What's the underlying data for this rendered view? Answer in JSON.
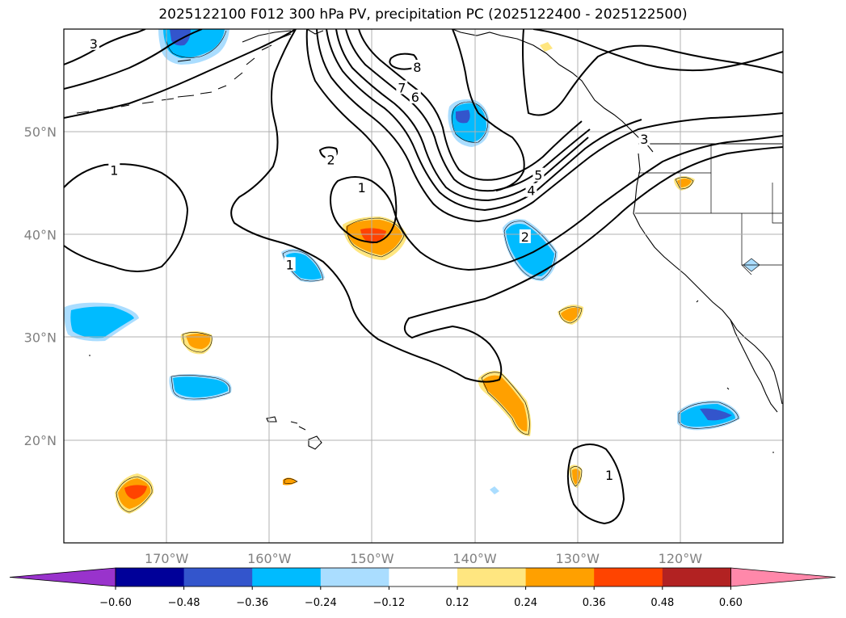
{
  "title": "2025122100 F012 300 hPa PV, precipitation PC (2025122400 - 2025122500)",
  "map": {
    "lon_range": [
      -180,
      -110
    ],
    "lat_range": [
      10,
      60
    ],
    "grid": true,
    "lon_ticks": [
      {
        "lon": -170,
        "label": "170°W"
      },
      {
        "lon": -160,
        "label": "160°W"
      },
      {
        "lon": -150,
        "label": "150°W"
      },
      {
        "lon": -140,
        "label": "140°W"
      },
      {
        "lon": -130,
        "label": "130°W"
      },
      {
        "lon": -120,
        "label": "120°W"
      }
    ],
    "lat_ticks": [
      {
        "lat": 20,
        "label": "20°N"
      },
      {
        "lat": 30,
        "label": "30°N"
      },
      {
        "lat": 40,
        "label": "40°N"
      },
      {
        "lat": 50,
        "label": "50°N"
      }
    ]
  },
  "contour_labels": [
    {
      "text": "3",
      "lon": -177.1,
      "lat": 58.6
    },
    {
      "text": "1",
      "lon": -175.1,
      "lat": 46.3
    },
    {
      "text": "2",
      "lon": -154.0,
      "lat": 47.3
    },
    {
      "text": "1",
      "lon": -151.0,
      "lat": 44.6
    },
    {
      "text": "8",
      "lon": -145.6,
      "lat": 56.3
    },
    {
      "text": "7",
      "lon": -147.1,
      "lat": 54.3
    },
    {
      "text": "6",
      "lon": -145.8,
      "lat": 53.4
    },
    {
      "text": "5",
      "lon": -133.8,
      "lat": 45.8
    },
    {
      "text": "4",
      "lon": -134.5,
      "lat": 44.3
    },
    {
      "text": "2",
      "lon": -135.1,
      "lat": 39.8
    },
    {
      "text": "1",
      "lon": -158.0,
      "lat": 37.1
    },
    {
      "text": "1",
      "lon": -126.9,
      "lat": 16.6
    },
    {
      "text": "3",
      "lon": -123.5,
      "lat": 49.3
    }
  ],
  "colorbar": {
    "ticks": [
      "−0.60",
      "−0.48",
      "−0.36",
      "−0.24",
      "−0.12",
      "0.12",
      "0.24",
      "0.36",
      "0.48",
      "0.60"
    ],
    "colors": [
      "#9933cc",
      "#000099",
      "#3355cc",
      "#00bbff",
      "#aaddff",
      "#ffffff",
      "#ffe680",
      "#ffa000",
      "#ff4400",
      "#b22222",
      "#ff88aa"
    ],
    "extend": "both"
  }
}
